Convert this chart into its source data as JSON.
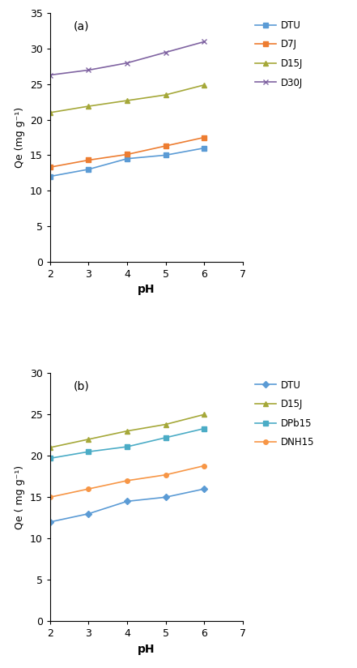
{
  "pH": [
    2,
    3,
    4,
    5,
    6
  ],
  "chart_a": {
    "label": "(a)",
    "series": [
      {
        "name": "DTU",
        "color": "#5B9BD5",
        "marker": "s",
        "markersize": 4,
        "values": [
          12.0,
          13.0,
          14.5,
          15.0,
          16.0
        ]
      },
      {
        "name": "D7J",
        "color": "#ED7D31",
        "marker": "s",
        "markersize": 4,
        "values": [
          13.3,
          14.3,
          15.1,
          16.3,
          17.5
        ]
      },
      {
        "name": "D15J",
        "color": "#A5A839",
        "marker": "^",
        "markersize": 4,
        "values": [
          21.0,
          21.9,
          22.7,
          23.5,
          24.9
        ]
      },
      {
        "name": "D30J",
        "color": "#8064A2",
        "marker": "x",
        "markersize": 5,
        "values": [
          26.3,
          27.0,
          28.0,
          29.5,
          31.0
        ]
      }
    ],
    "ylabel": "Qe (mg g",
    "ylabel_suffix": "⁻¹)",
    "xlabel": "pH",
    "ylim": [
      0,
      35
    ],
    "yticks": [
      0,
      5,
      10,
      15,
      20,
      25,
      30,
      35
    ],
    "xlim": [
      2,
      7
    ],
    "xticks": [
      2,
      3,
      4,
      5,
      6,
      7
    ]
  },
  "chart_b": {
    "label": "(b)",
    "series": [
      {
        "name": "DTU",
        "color": "#5B9BD5",
        "marker": "D",
        "markersize": 4,
        "values": [
          12.0,
          13.0,
          14.5,
          15.0,
          16.0
        ]
      },
      {
        "name": "D15J",
        "color": "#A5A839",
        "marker": "^",
        "markersize": 4,
        "values": [
          21.0,
          22.0,
          23.0,
          23.8,
          25.0
        ]
      },
      {
        "name": "DPb15",
        "color": "#4BACC6",
        "marker": "s",
        "markersize": 4,
        "values": [
          19.7,
          20.5,
          21.1,
          22.2,
          23.3
        ]
      },
      {
        "name": "DNH15",
        "color": "#F79646",
        "marker": "o",
        "markersize": 4,
        "values": [
          15.0,
          16.0,
          17.0,
          17.7,
          18.8
        ]
      }
    ],
    "ylabel": "Qe ( mg g",
    "ylabel_suffix": "⁻¹)",
    "xlabel": "pH",
    "ylim": [
      0,
      30
    ],
    "yticks": [
      0,
      5,
      10,
      15,
      20,
      25,
      30
    ],
    "xlim": [
      2,
      7
    ],
    "xticks": [
      2,
      3,
      4,
      5,
      6,
      7
    ]
  },
  "background_color": "#FFFFFF",
  "linewidth": 1.2
}
